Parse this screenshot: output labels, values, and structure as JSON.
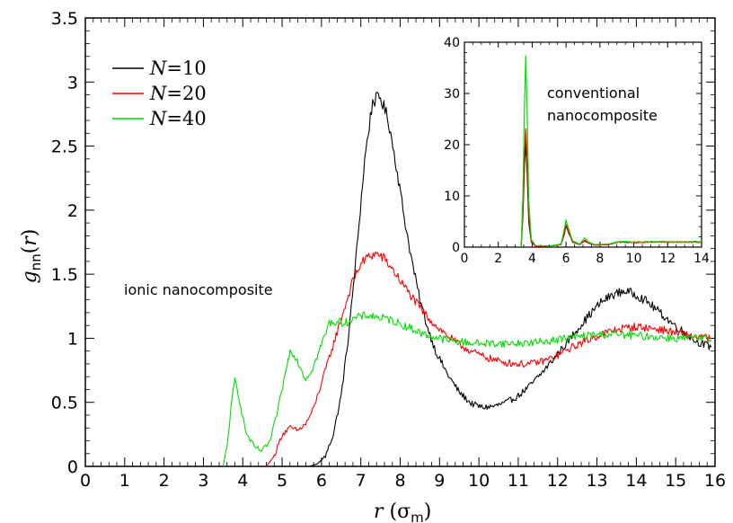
{
  "chart_data": [
    {
      "type": "line",
      "xlabel": {
        "var": "r",
        "unit": "σ",
        "unit_sub": "m"
      },
      "ylabel": {
        "var": "g",
        "sub": "nn",
        "arg": "r"
      },
      "xlim": [
        0,
        16
      ],
      "ylim": [
        0,
        3.5
      ],
      "x_ticks": [
        "0",
        "1",
        "2",
        "3",
        "4",
        "5",
        "6",
        "7",
        "8",
        "9",
        "10",
        "11",
        "12",
        "13",
        "14",
        "15",
        "16"
      ],
      "y_ticks": [
        "0",
        "0.5",
        "1",
        "1.5",
        "2",
        "2.5",
        "3",
        "3.5"
      ],
      "legend": {
        "position": "top-left",
        "entries": [
          {
            "var": "N",
            "label": "=10",
            "color": "#000000"
          },
          {
            "var": "N",
            "label": "=20",
            "color": "#ff0000"
          },
          {
            "var": "N",
            "label": "=40",
            "color": "#00dd00"
          }
        ]
      },
      "annotation": "ionic nanocomposite",
      "series": [
        {
          "name": "N=10",
          "color": "#000000",
          "points": [
            [
              5.7,
              0
            ],
            [
              5.9,
              0.02
            ],
            [
              6.1,
              0.08
            ],
            [
              6.3,
              0.25
            ],
            [
              6.5,
              0.55
            ],
            [
              6.7,
              1.05
            ],
            [
              6.9,
              1.7
            ],
            [
              7.1,
              2.4
            ],
            [
              7.3,
              2.85
            ],
            [
              7.5,
              2.88
            ],
            [
              7.7,
              2.7
            ],
            [
              7.9,
              2.35
            ],
            [
              8.1,
              1.95
            ],
            [
              8.3,
              1.6
            ],
            [
              8.5,
              1.3
            ],
            [
              8.7,
              1.08
            ],
            [
              8.9,
              0.9
            ],
            [
              9.2,
              0.72
            ],
            [
              9.5,
              0.58
            ],
            [
              9.8,
              0.49
            ],
            [
              10.1,
              0.46
            ],
            [
              10.4,
              0.47
            ],
            [
              10.7,
              0.5
            ],
            [
              11.0,
              0.55
            ],
            [
              11.3,
              0.63
            ],
            [
              11.6,
              0.73
            ],
            [
              11.9,
              0.84
            ],
            [
              12.2,
              0.95
            ],
            [
              12.5,
              1.07
            ],
            [
              12.8,
              1.18
            ],
            [
              13.1,
              1.28
            ],
            [
              13.4,
              1.34
            ],
            [
              13.7,
              1.37
            ],
            [
              14.0,
              1.34
            ],
            [
              14.3,
              1.28
            ],
            [
              14.6,
              1.2
            ],
            [
              14.9,
              1.12
            ],
            [
              15.2,
              1.05
            ],
            [
              15.5,
              0.98
            ],
            [
              15.9,
              0.93
            ]
          ]
        },
        {
          "name": "N=20",
          "color": "#ff0000",
          "points": [
            [
              4.6,
              0
            ],
            [
              4.8,
              0.08
            ],
            [
              5.0,
              0.25
            ],
            [
              5.2,
              0.3
            ],
            [
              5.4,
              0.28
            ],
            [
              5.6,
              0.33
            ],
            [
              5.8,
              0.45
            ],
            [
              6.0,
              0.65
            ],
            [
              6.2,
              0.85
            ],
            [
              6.4,
              1.05
            ],
            [
              6.6,
              1.25
            ],
            [
              6.8,
              1.45
            ],
            [
              7.0,
              1.58
            ],
            [
              7.2,
              1.64
            ],
            [
              7.4,
              1.66
            ],
            [
              7.6,
              1.62
            ],
            [
              7.8,
              1.54
            ],
            [
              8.0,
              1.45
            ],
            [
              8.3,
              1.32
            ],
            [
              8.6,
              1.2
            ],
            [
              8.9,
              1.1
            ],
            [
              9.2,
              1.02
            ],
            [
              9.5,
              0.95
            ],
            [
              9.8,
              0.9
            ],
            [
              10.1,
              0.86
            ],
            [
              10.4,
              0.83
            ],
            [
              10.7,
              0.81
            ],
            [
              11.0,
              0.8
            ],
            [
              11.3,
              0.8
            ],
            [
              11.6,
              0.82
            ],
            [
              11.9,
              0.85
            ],
            [
              12.2,
              0.9
            ],
            [
              12.5,
              0.95
            ],
            [
              12.8,
              0.99
            ],
            [
              13.1,
              1.03
            ],
            [
              13.4,
              1.06
            ],
            [
              13.7,
              1.08
            ],
            [
              14.0,
              1.09
            ],
            [
              14.3,
              1.08
            ],
            [
              14.6,
              1.07
            ],
            [
              14.9,
              1.05
            ],
            [
              15.2,
              1.03
            ],
            [
              15.5,
              1.01
            ],
            [
              15.9,
              1.0
            ]
          ]
        },
        {
          "name": "N=40",
          "color": "#00dd00",
          "points": [
            [
              3.5,
              0
            ],
            [
              3.6,
              0.15
            ],
            [
              3.7,
              0.45
            ],
            [
              3.8,
              0.68
            ],
            [
              3.9,
              0.55
            ],
            [
              4.0,
              0.38
            ],
            [
              4.1,
              0.25
            ],
            [
              4.3,
              0.15
            ],
            [
              4.5,
              0.12
            ],
            [
              4.7,
              0.2
            ],
            [
              4.9,
              0.45
            ],
            [
              5.1,
              0.75
            ],
            [
              5.2,
              0.9
            ],
            [
              5.3,
              0.88
            ],
            [
              5.5,
              0.75
            ],
            [
              5.6,
              0.68
            ],
            [
              5.8,
              0.78
            ],
            [
              6.0,
              0.95
            ],
            [
              6.2,
              1.12
            ],
            [
              6.4,
              1.13
            ],
            [
              6.6,
              1.12
            ],
            [
              6.8,
              1.15
            ],
            [
              7.0,
              1.17
            ],
            [
              7.2,
              1.18
            ],
            [
              7.5,
              1.16
            ],
            [
              7.8,
              1.14
            ],
            [
              8.1,
              1.1
            ],
            [
              8.4,
              1.06
            ],
            [
              8.7,
              1.02
            ],
            [
              9.0,
              1.0
            ],
            [
              9.3,
              0.98
            ],
            [
              9.6,
              0.97
            ],
            [
              10.0,
              0.96
            ],
            [
              10.5,
              0.96
            ],
            [
              11.0,
              0.96
            ],
            [
              11.5,
              0.97
            ],
            [
              12.0,
              0.99
            ],
            [
              12.5,
              1.01
            ],
            [
              13.0,
              1.03
            ],
            [
              13.5,
              1.03
            ],
            [
              14.0,
              1.02
            ],
            [
              14.5,
              1.01
            ],
            [
              15.0,
              1.0
            ],
            [
              15.5,
              1.0
            ],
            [
              15.9,
              0.99
            ]
          ]
        }
      ]
    },
    {
      "type": "line",
      "position": "inset-top-right",
      "xlim": [
        0,
        14
      ],
      "ylim": [
        0,
        40
      ],
      "x_ticks": [
        "0",
        "2",
        "4",
        "6",
        "8",
        "10",
        "12",
        "14"
      ],
      "y_ticks": [
        "0",
        "10",
        "20",
        "30",
        "40"
      ],
      "annotation_lines": [
        "conventional",
        "nanocomposite"
      ],
      "series": [
        {
          "name": "N=10",
          "color": "#000000",
          "points": [
            [
              3.35,
              0
            ],
            [
              3.45,
              6
            ],
            [
              3.55,
              16
            ],
            [
              3.62,
              20.5
            ],
            [
              3.7,
              15
            ],
            [
              3.8,
              5
            ],
            [
              3.95,
              1
            ],
            [
              4.2,
              0.2
            ],
            [
              5.0,
              0.2
            ],
            [
              5.7,
              0.5
            ],
            [
              5.9,
              2.5
            ],
            [
              6.0,
              4.2
            ],
            [
              6.15,
              2.8
            ],
            [
              6.4,
              1.0
            ],
            [
              6.8,
              0.5
            ],
            [
              7.1,
              1.2
            ],
            [
              7.3,
              0.8
            ],
            [
              7.7,
              0.4
            ],
            [
              8.5,
              0.5
            ],
            [
              9.0,
              0.9
            ],
            [
              9.3,
              1.0
            ],
            [
              10,
              0.9
            ],
            [
              11,
              1.0
            ],
            [
              12,
              1.0
            ],
            [
              13,
              1.0
            ],
            [
              14,
              1.0
            ]
          ]
        },
        {
          "name": "N=20",
          "color": "#ff0000",
          "points": [
            [
              3.35,
              0
            ],
            [
              3.45,
              7
            ],
            [
              3.55,
              18
            ],
            [
              3.62,
              23
            ],
            [
              3.7,
              17
            ],
            [
              3.8,
              6
            ],
            [
              3.95,
              1
            ],
            [
              4.2,
              0.2
            ],
            [
              5.0,
              0.2
            ],
            [
              5.7,
              0.5
            ],
            [
              5.9,
              2.8
            ],
            [
              6.0,
              4.5
            ],
            [
              6.15,
              3.0
            ],
            [
              6.4,
              1.0
            ],
            [
              6.8,
              0.5
            ],
            [
              7.1,
              1.3
            ],
            [
              7.3,
              0.8
            ],
            [
              7.7,
              0.4
            ],
            [
              8.5,
              0.5
            ],
            [
              9.0,
              0.9
            ],
            [
              9.3,
              1.0
            ],
            [
              10,
              0.9
            ],
            [
              11,
              1.0
            ],
            [
              12,
              1.0
            ],
            [
              13,
              1.0
            ],
            [
              14,
              1.0
            ]
          ]
        },
        {
          "name": "N=40",
          "color": "#00dd00",
          "points": [
            [
              3.35,
              0
            ],
            [
              3.45,
              10
            ],
            [
              3.55,
              28
            ],
            [
              3.62,
              37.5
            ],
            [
              3.7,
              27
            ],
            [
              3.8,
              9
            ],
            [
              3.95,
              1.5
            ],
            [
              4.2,
              0.3
            ],
            [
              5.0,
              0.2
            ],
            [
              5.7,
              0.6
            ],
            [
              5.9,
              3.5
            ],
            [
              6.0,
              5.3
            ],
            [
              6.15,
              3.6
            ],
            [
              6.4,
              1.2
            ],
            [
              6.8,
              0.6
            ],
            [
              7.1,
              1.8
            ],
            [
              7.3,
              1.0
            ],
            [
              7.7,
              0.5
            ],
            [
              8.5,
              0.6
            ],
            [
              9.0,
              1.0
            ],
            [
              9.3,
              1.1
            ],
            [
              10,
              1.0
            ],
            [
              11,
              1.0
            ],
            [
              12,
              1.0
            ],
            [
              13,
              1.0
            ],
            [
              14,
              1.0
            ]
          ]
        }
      ]
    }
  ]
}
